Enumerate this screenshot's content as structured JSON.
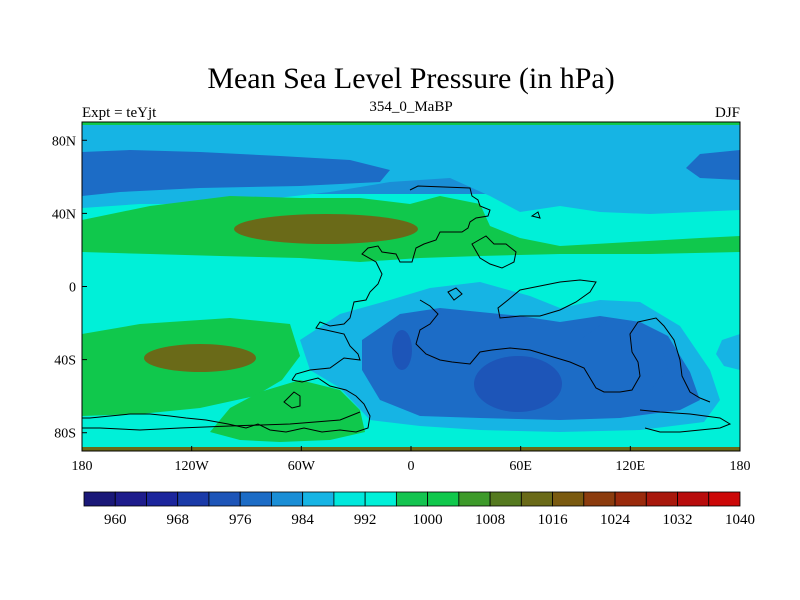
{
  "chart_data": {
    "type": "heatmap",
    "title": "Mean Sea Level Pressure (in hPa)",
    "left_label": "Expt = teYjt",
    "center_label": "354_0_MaBP",
    "right_label": "DJF",
    "x_ticks": [
      "180",
      "120W",
      "60W",
      "0",
      "60E",
      "120E",
      "180"
    ],
    "x_tick_values": [
      -180,
      -120,
      -60,
      0,
      60,
      120,
      180
    ],
    "y_ticks": [
      "80N",
      "40N",
      "0",
      "40S",
      "80S"
    ],
    "y_tick_values": [
      80,
      40,
      0,
      -40,
      -80
    ],
    "xlim": [
      -180,
      180
    ],
    "ylim": [
      -90,
      90
    ],
    "colorbar": {
      "levels": [
        960,
        964,
        968,
        972,
        976,
        980,
        984,
        988,
        992,
        996,
        1000,
        1004,
        1008,
        1012,
        1016,
        1020,
        1024,
        1028,
        1032,
        1036,
        1040
      ],
      "labels": [
        "960",
        "968",
        "976",
        "984",
        "992",
        "1000",
        "1008",
        "1016",
        "1024",
        "1032",
        "1040"
      ],
      "colors": [
        "#1a1878",
        "#1e1c8c",
        "#1b259c",
        "#1a3aa8",
        "#1d55b8",
        "#1c6cc6",
        "#1a8ed6",
        "#16b4e4",
        "#00e8dc",
        "#00f0d8",
        "#14c450",
        "#10c84c",
        "#3d9a2a",
        "#557a20",
        "#6a6a18",
        "#7a5a10",
        "#8c3c0e",
        "#9a2a0c",
        "#a8180c",
        "#b80c0c",
        "#cc0808"
      ]
    },
    "regions": [
      {
        "name": "ocean-background",
        "level": 996
      },
      {
        "name": "northern-band",
        "level": 988
      },
      {
        "name": "arctic-band",
        "level": 984
      },
      {
        "name": "north-pacific-low",
        "level": 980
      },
      {
        "name": "north-subtropical-high",
        "level": 1004
      },
      {
        "name": "north-high-core",
        "level": 1016
      },
      {
        "name": "south-pacific-high",
        "level": 1004
      },
      {
        "name": "south-pacific-high-core",
        "level": 1016
      },
      {
        "name": "south-atlantic-high",
        "level": 1004
      },
      {
        "name": "gondwana-low",
        "level": 988
      },
      {
        "name": "gondwana-low-inner",
        "level": 980
      },
      {
        "name": "gondwana-low-core",
        "level": 976
      },
      {
        "name": "east-low",
        "level": 980
      },
      {
        "name": "east-edge-low",
        "level": 988
      }
    ]
  }
}
